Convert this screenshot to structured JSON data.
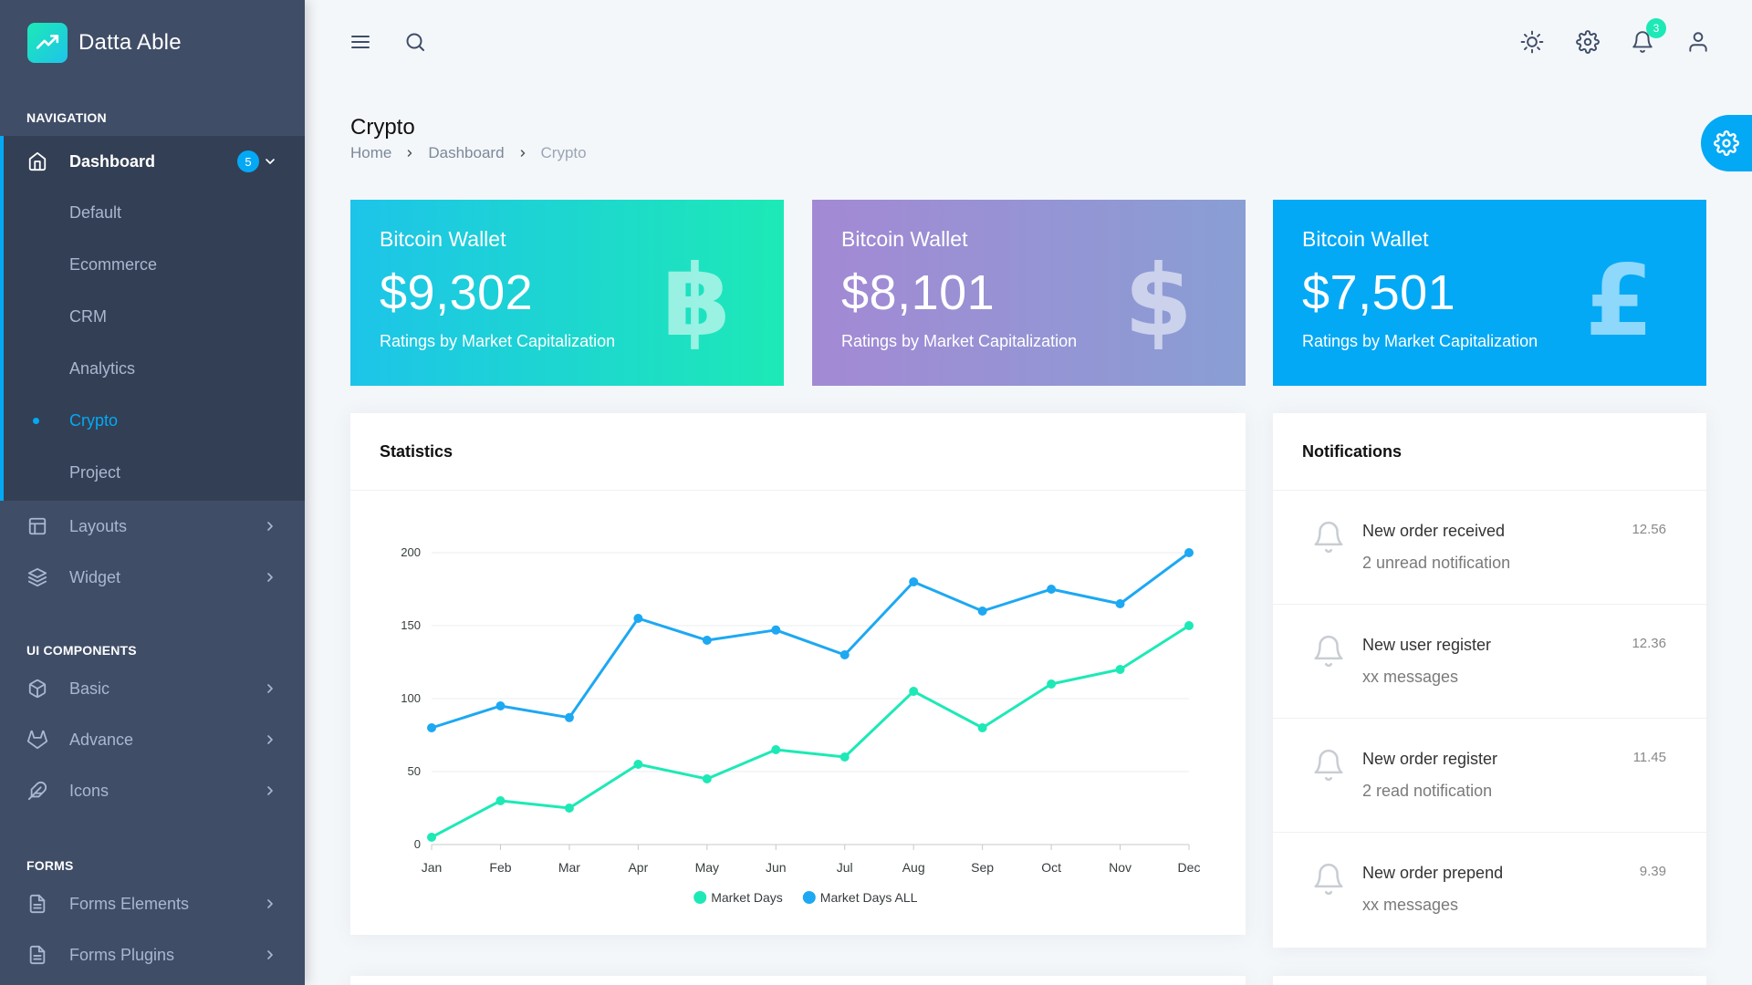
{
  "brand": {
    "name": "Datta Able"
  },
  "sidebar": {
    "captions": [
      "NAVIGATION",
      "UI COMPONENTS",
      "FORMS"
    ],
    "dashboard": {
      "label": "Dashboard",
      "badge": "5"
    },
    "submenu": [
      {
        "label": "Default"
      },
      {
        "label": "Ecommerce"
      },
      {
        "label": "CRM"
      },
      {
        "label": "Analytics"
      },
      {
        "label": "Crypto"
      },
      {
        "label": "Project"
      }
    ],
    "items": [
      {
        "label": "Layouts",
        "icon": "layout-icon"
      },
      {
        "label": "Widget",
        "icon": "layers-icon"
      },
      {
        "label": "Basic",
        "icon": "box-icon"
      },
      {
        "label": "Advance",
        "icon": "gitlab-icon"
      },
      {
        "label": "Icons",
        "icon": "feather-icon"
      },
      {
        "label": "Forms Elements",
        "icon": "file-text-icon"
      },
      {
        "label": "Forms Plugins",
        "icon": "file-text-icon"
      }
    ]
  },
  "header": {
    "notification_count": "3"
  },
  "page": {
    "title": "Crypto",
    "breadcrumb": [
      "Home",
      "Dashboard",
      "Crypto"
    ]
  },
  "wallets": [
    {
      "title": "Bitcoin Wallet",
      "amount": "$9,302",
      "subtitle": "Ratings by Market Capitalization",
      "symbol": "฿"
    },
    {
      "title": "Bitcoin Wallet",
      "amount": "$8,101",
      "subtitle": "Ratings by Market Capitalization",
      "symbol": "$"
    },
    {
      "title": "Bitcoin Wallet",
      "amount": "$7,501",
      "subtitle": "Ratings by Market Capitalization",
      "symbol": "£"
    }
  ],
  "statistics": {
    "title": "Statistics"
  },
  "chart_data": {
    "type": "line",
    "categories": [
      "Jan",
      "Feb",
      "Mar",
      "Apr",
      "May",
      "Jun",
      "Jul",
      "Aug",
      "Sep",
      "Oct",
      "Nov",
      "Dec"
    ],
    "series": [
      {
        "name": "Market Days",
        "color": "#1de9b6",
        "values": [
          5,
          30,
          25,
          55,
          45,
          65,
          60,
          105,
          80,
          110,
          120,
          150
        ]
      },
      {
        "name": "Market Days ALL",
        "color": "#1da8f2",
        "values": [
          80,
          95,
          87,
          155,
          140,
          147,
          130,
          180,
          160,
          175,
          165,
          200
        ]
      }
    ],
    "yticks": [
      0,
      50,
      100,
      150,
      200
    ],
    "ylim": [
      0,
      200
    ],
    "grid": true,
    "legend": "bottom"
  },
  "notifications": {
    "title": "Notifications",
    "items": [
      {
        "title": "New order received",
        "subtitle": "2 unread notification",
        "time": "12.56"
      },
      {
        "title": "New user register",
        "subtitle": "xx messages",
        "time": "12.36"
      },
      {
        "title": "New order register",
        "subtitle": "2 read notification",
        "time": "11.45"
      },
      {
        "title": "New order prepend",
        "subtitle": "xx messages",
        "time": "9.39"
      }
    ]
  }
}
